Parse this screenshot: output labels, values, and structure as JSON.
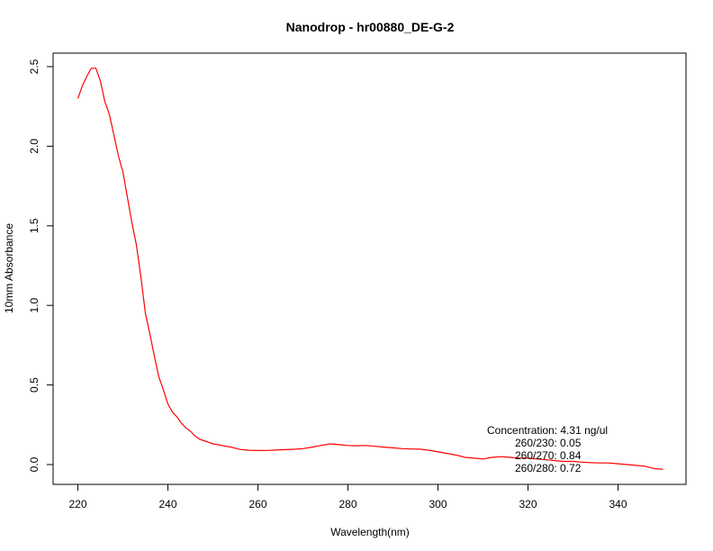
{
  "chart_data": {
    "type": "line",
    "title": "Nanodrop - hr00880_DE-G-2",
    "xlabel": "Wavelength(nm)",
    "ylabel": "10mm Absorbance",
    "xlim": [
      220,
      350
    ],
    "ylim": [
      -0.05,
      2.56
    ],
    "x_ticks": [
      220,
      240,
      260,
      280,
      300,
      320,
      340
    ],
    "y_ticks": [
      0.0,
      0.5,
      1.0,
      1.5,
      2.0,
      2.5
    ],
    "x_tick_labels": [
      "220",
      "240",
      "260",
      "280",
      "300",
      "320",
      "340"
    ],
    "y_tick_labels": [
      "0.0",
      "0.5",
      "1.0",
      "1.5",
      "2.0",
      "2.5"
    ],
    "grid": false,
    "series": [
      {
        "color": "#ff0000",
        "x": [
          220,
          221,
          222,
          223,
          224,
          225,
          226,
          227,
          228,
          229,
          230,
          231,
          232,
          233,
          234,
          235,
          236,
          237,
          238,
          239,
          240,
          241,
          242,
          243,
          244,
          245,
          246,
          247,
          248,
          249,
          250,
          252,
          254,
          256,
          258,
          260,
          262,
          264,
          266,
          268,
          270,
          272,
          274,
          276,
          278,
          280,
          282,
          284,
          286,
          288,
          290,
          292,
          294,
          296,
          298,
          300,
          302,
          304,
          306,
          308,
          310,
          312,
          314,
          316,
          318,
          320,
          322,
          324,
          326,
          328,
          330,
          332,
          334,
          336,
          338,
          340,
          342,
          344,
          346,
          348,
          350
        ],
        "y": [
          2.3,
          2.38,
          2.44,
          2.49,
          2.49,
          2.41,
          2.28,
          2.2,
          2.07,
          1.94,
          1.84,
          1.68,
          1.52,
          1.38,
          1.18,
          0.95,
          0.82,
          0.68,
          0.55,
          0.47,
          0.38,
          0.33,
          0.3,
          0.26,
          0.23,
          0.21,
          0.18,
          0.16,
          0.15,
          0.14,
          0.13,
          0.12,
          0.11,
          0.095,
          0.09,
          0.088,
          0.089,
          0.091,
          0.094,
          0.096,
          0.1,
          0.11,
          0.12,
          0.13,
          0.125,
          0.12,
          0.118,
          0.12,
          0.115,
          0.11,
          0.105,
          0.1,
          0.098,
          0.097,
          0.09,
          0.08,
          0.07,
          0.06,
          0.045,
          0.04,
          0.035,
          0.045,
          0.05,
          0.045,
          0.04,
          0.04,
          0.035,
          0.03,
          0.025,
          0.02,
          0.02,
          0.015,
          0.012,
          0.01,
          0.01,
          0.005,
          0.0,
          -0.005,
          -0.01,
          -0.025,
          -0.03
        ]
      }
    ],
    "annotations": [
      "Concentration: 4.31 ng/ul",
      "260/230: 0.05",
      "260/270: 0.84",
      "260/280: 0.72"
    ]
  }
}
